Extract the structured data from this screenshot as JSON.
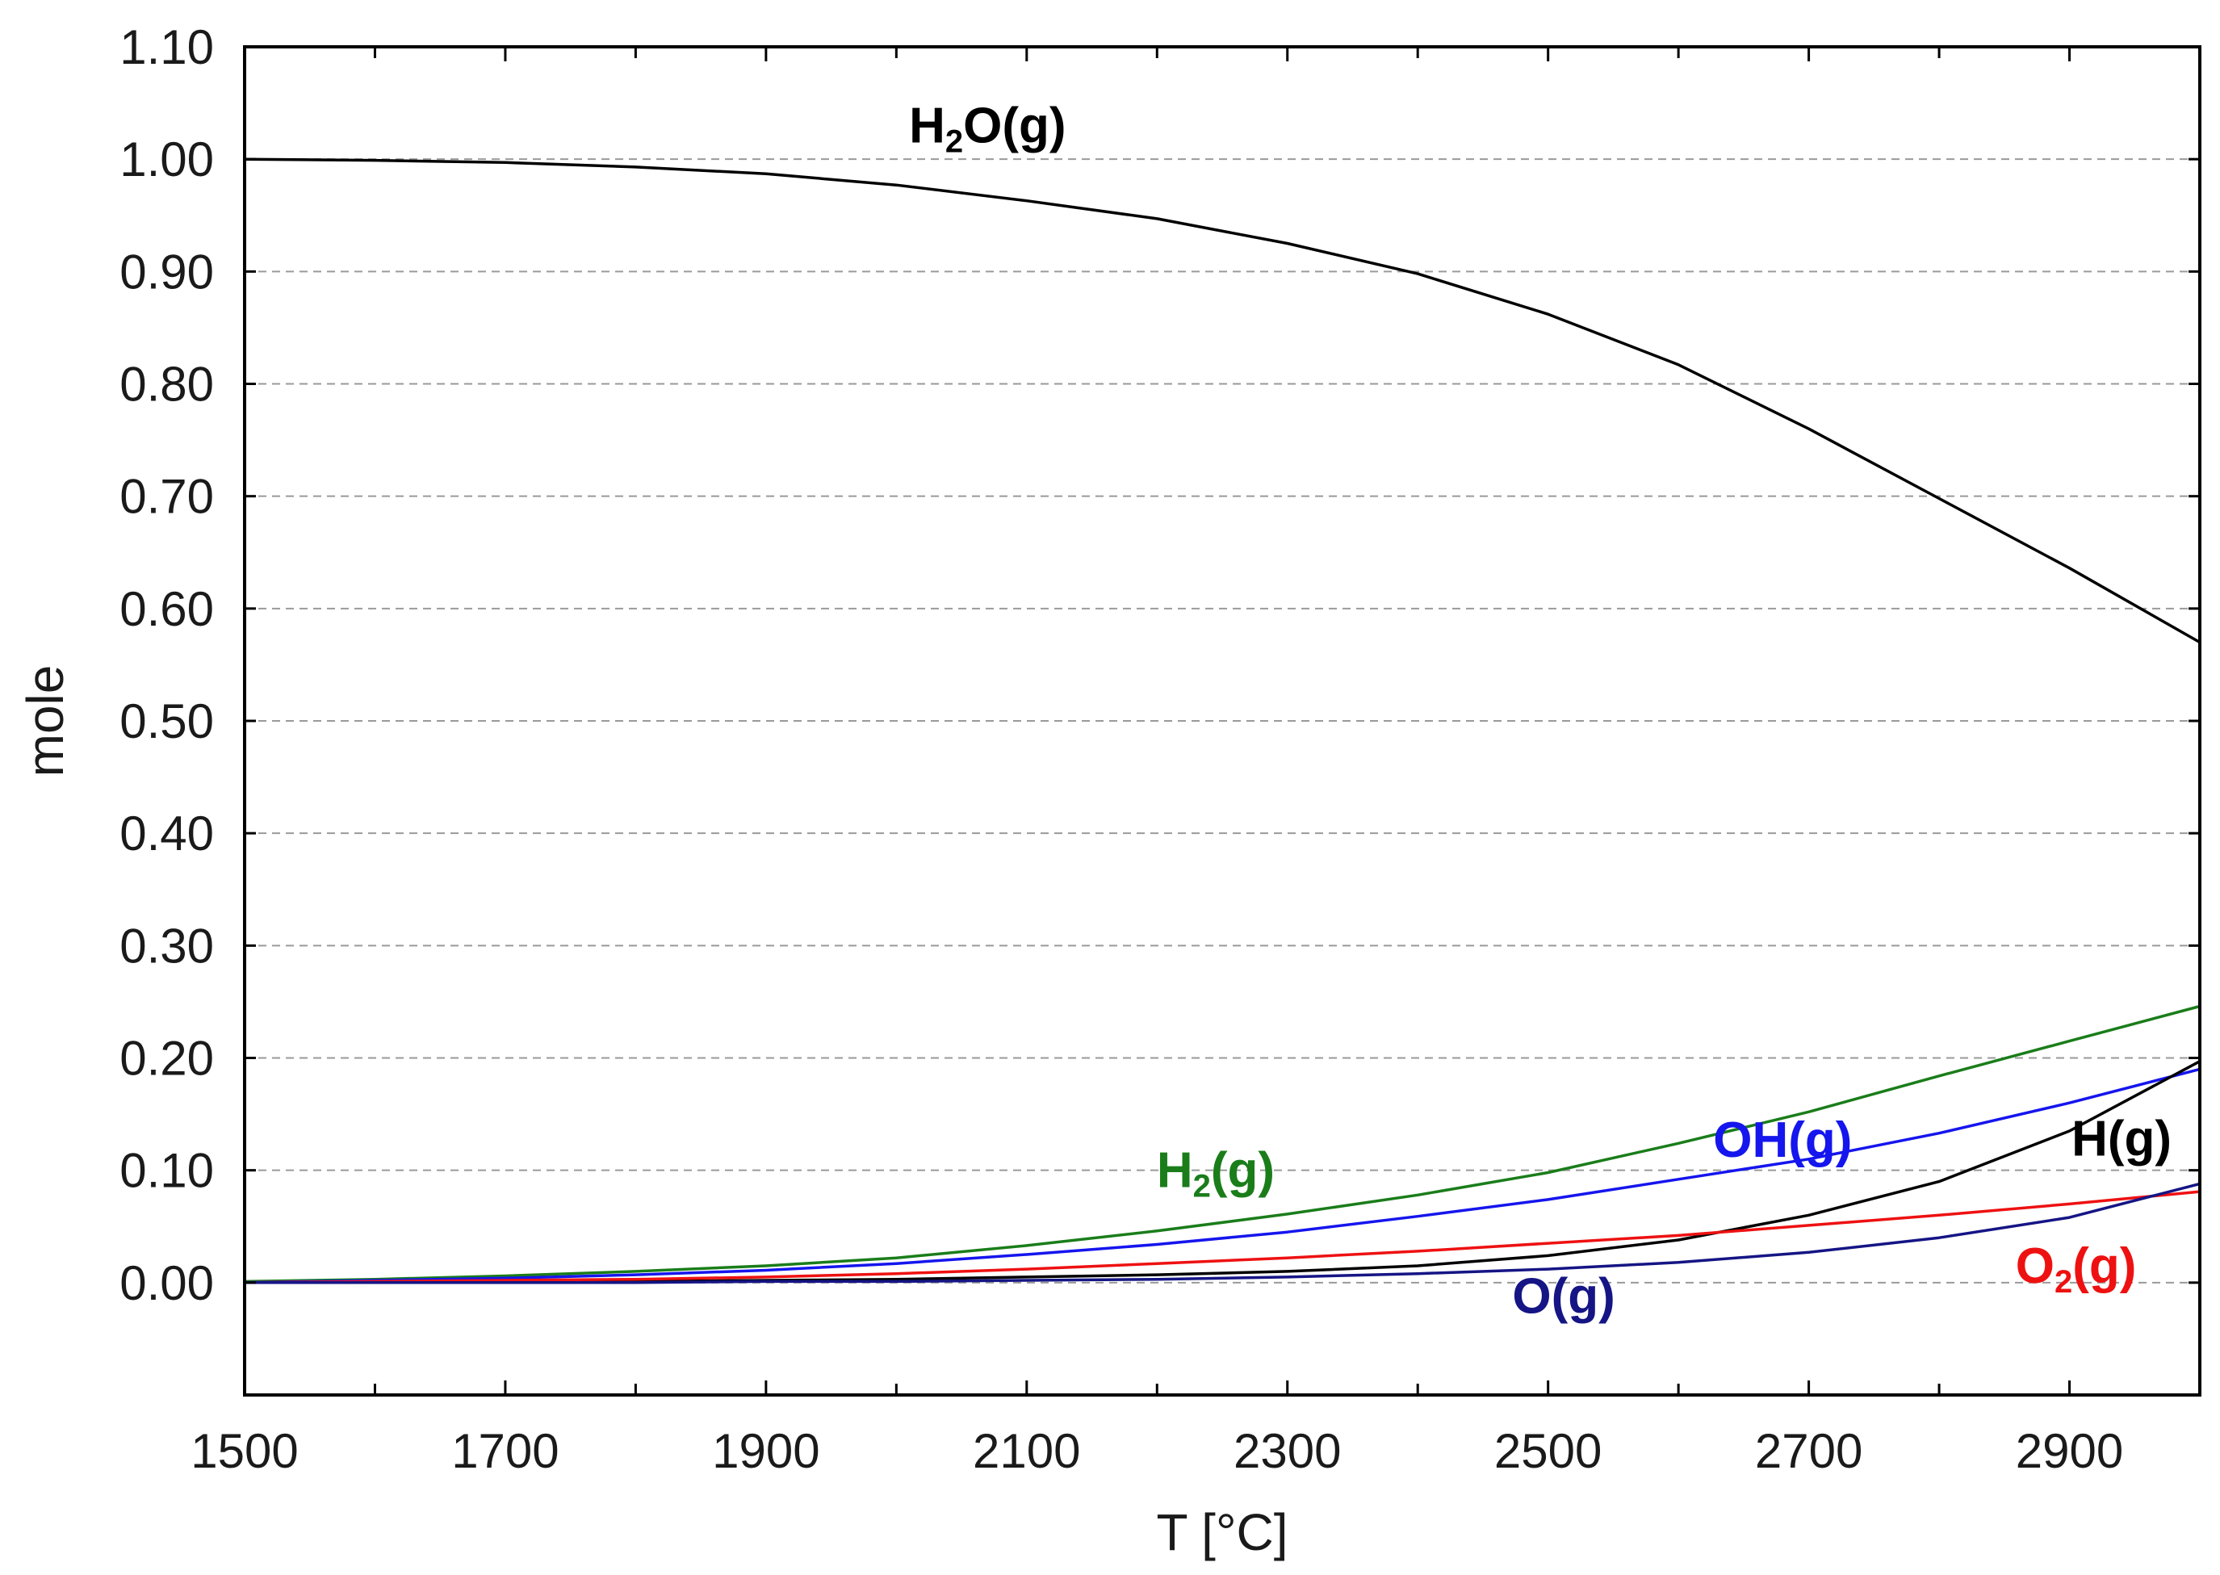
{
  "chart_data": {
    "type": "line",
    "title": "",
    "xlabel": "T [°C]",
    "ylabel": "mole",
    "xlim": [
      1500,
      3000
    ],
    "ylim": [
      -0.1,
      1.1
    ],
    "x_ticks": [
      1500,
      1700,
      1900,
      2100,
      2300,
      2500,
      2700,
      2900
    ],
    "x_tick_labels": [
      "1500",
      "1700",
      "1900",
      "2100",
      "2300",
      "2500",
      "2700",
      "2900"
    ],
    "y_ticks": [
      0.0,
      0.1,
      0.2,
      0.3,
      0.4,
      0.5,
      0.6,
      0.7,
      0.8,
      0.9,
      1.0,
      1.1
    ],
    "y_tick_labels": [
      "0.00",
      "0.10",
      "0.20",
      "0.30",
      "0.40",
      "0.50",
      "0.60",
      "0.70",
      "0.80",
      "0.90",
      "1.00",
      "1.10"
    ],
    "grid": "horizontal dashed",
    "series": [
      {
        "name": "H2O(g)",
        "label_main": "H",
        "label_sub": "2",
        "label_rest": "O(g)",
        "label_at": [
          2070,
          1.015
        ],
        "color": "#000000",
        "x": [
          1500,
          1600,
          1700,
          1800,
          1900,
          2000,
          2100,
          2200,
          2300,
          2400,
          2500,
          2600,
          2700,
          2800,
          2900,
          3000
        ],
        "y": [
          1.0,
          0.999,
          0.997,
          0.993,
          0.987,
          0.977,
          0.963,
          0.947,
          0.925,
          0.898,
          0.862,
          0.817,
          0.76,
          0.698,
          0.636,
          0.57
        ]
      },
      {
        "name": "H2(g)",
        "label_main": "H",
        "label_sub": "2",
        "label_rest": "(g)",
        "label_at": [
          2245,
          0.085
        ],
        "color": "#1a7d1a",
        "x": [
          1500,
          1600,
          1700,
          1800,
          1900,
          2000,
          2100,
          2200,
          2300,
          2400,
          2500,
          2600,
          2700,
          2800,
          2900,
          3000
        ],
        "y": [
          0.001,
          0.003,
          0.006,
          0.01,
          0.015,
          0.022,
          0.033,
          0.046,
          0.061,
          0.078,
          0.098,
          0.124,
          0.152,
          0.184,
          0.215,
          0.246
        ]
      },
      {
        "name": "OH(g)",
        "label_main": "OH(g)",
        "label_sub": "",
        "label_rest": "",
        "label_at": [
          2680,
          0.112
        ],
        "color": "#1515ee",
        "x": [
          1500,
          1600,
          1700,
          1800,
          1900,
          2000,
          2100,
          2200,
          2300,
          2400,
          2500,
          2600,
          2700,
          2800,
          2900,
          3000
        ],
        "y": [
          0.0,
          0.002,
          0.004,
          0.007,
          0.011,
          0.017,
          0.025,
          0.034,
          0.045,
          0.059,
          0.074,
          0.092,
          0.11,
          0.133,
          0.16,
          0.19
        ]
      },
      {
        "name": "H(g)",
        "label_main": "H(g)",
        "label_sub": "",
        "label_rest": "",
        "label_at": [
          2940,
          0.113
        ],
        "color": "#000000",
        "x": [
          1500,
          1600,
          1700,
          1800,
          1900,
          2000,
          2100,
          2200,
          2300,
          2400,
          2500,
          2600,
          2700,
          2800,
          2900,
          3000
        ],
        "y": [
          0.0,
          0.0,
          0.001,
          0.001,
          0.002,
          0.003,
          0.005,
          0.007,
          0.01,
          0.015,
          0.024,
          0.038,
          0.06,
          0.09,
          0.135,
          0.197
        ]
      },
      {
        "name": "O2(g)",
        "label_main": "O",
        "label_sub": "2",
        "label_rest": "(g)",
        "label_at": [
          2905,
          0.0
        ],
        "color": "#ee1111",
        "x": [
          1500,
          1600,
          1700,
          1800,
          1900,
          2000,
          2100,
          2200,
          2300,
          2400,
          2500,
          2600,
          2700,
          2800,
          2900,
          3000
        ],
        "y": [
          0.0,
          0.001,
          0.002,
          0.003,
          0.005,
          0.008,
          0.012,
          0.017,
          0.022,
          0.028,
          0.035,
          0.042,
          0.051,
          0.06,
          0.07,
          0.081
        ]
      },
      {
        "name": "O(g)",
        "label_main": "O(g)",
        "label_sub": "",
        "label_rest": "",
        "label_at": [
          2512,
          -0.027
        ],
        "color": "#151585",
        "x": [
          1500,
          1600,
          1700,
          1800,
          1900,
          2000,
          2100,
          2200,
          2300,
          2400,
          2500,
          2600,
          2700,
          2800,
          2900,
          3000
        ],
        "y": [
          0.0,
          0.0,
          0.0,
          0.0,
          0.001,
          0.001,
          0.002,
          0.003,
          0.005,
          0.008,
          0.012,
          0.018,
          0.027,
          0.04,
          0.058,
          0.088
        ]
      }
    ]
  }
}
